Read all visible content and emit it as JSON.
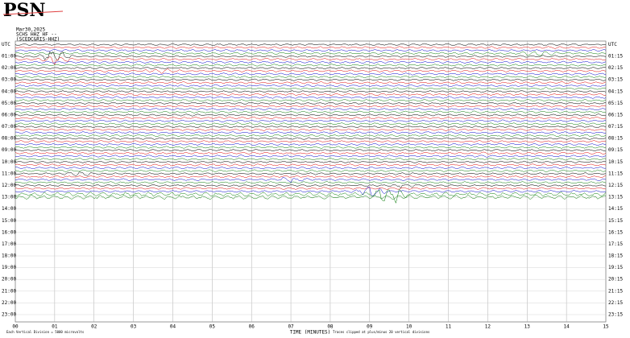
{
  "logo": "PSN",
  "header": [
    "Mar30,2025",
    "SCHS HHZ HF --",
    "(SCEDC&RIS-HHZ)"
  ],
  "left_labels": [
    "UTC",
    "01:00",
    "02:00",
    "03:00",
    "04:00",
    "05:00",
    "06:00",
    "07:00",
    "08:00",
    "09:00",
    "10:00",
    "11:00",
    "12:00",
    "13:00",
    "14:00",
    "15:00",
    "16:00",
    "17:00",
    "18:00",
    "19:00",
    "20:00",
    "21:00",
    "22:00",
    "23:00"
  ],
  "right_labels": [
    "UTC",
    "01:15",
    "02:15",
    "03:15",
    "04:15",
    "05:15",
    "06:15",
    "07:15",
    "08:15",
    "09:15",
    "10:15",
    "11:15",
    "12:15",
    "13:15",
    "14:15",
    "15:15",
    "16:15",
    "17:15",
    "18:15",
    "19:15",
    "20:15",
    "21:15",
    "22:15",
    "23:15"
  ],
  "x_ticks": [
    "00",
    "01",
    "02",
    "03",
    "04",
    "05",
    "06",
    "07",
    "08",
    "09",
    "10",
    "11",
    "12",
    "13",
    "14",
    "15"
  ],
  "x_title": "TIME (MINUTES)",
  "footer_left": "Each Vertical Division = 5000 microvolts",
  "footer_right": "Traces clipped at plus/minus 20 vertical divisions"
}
